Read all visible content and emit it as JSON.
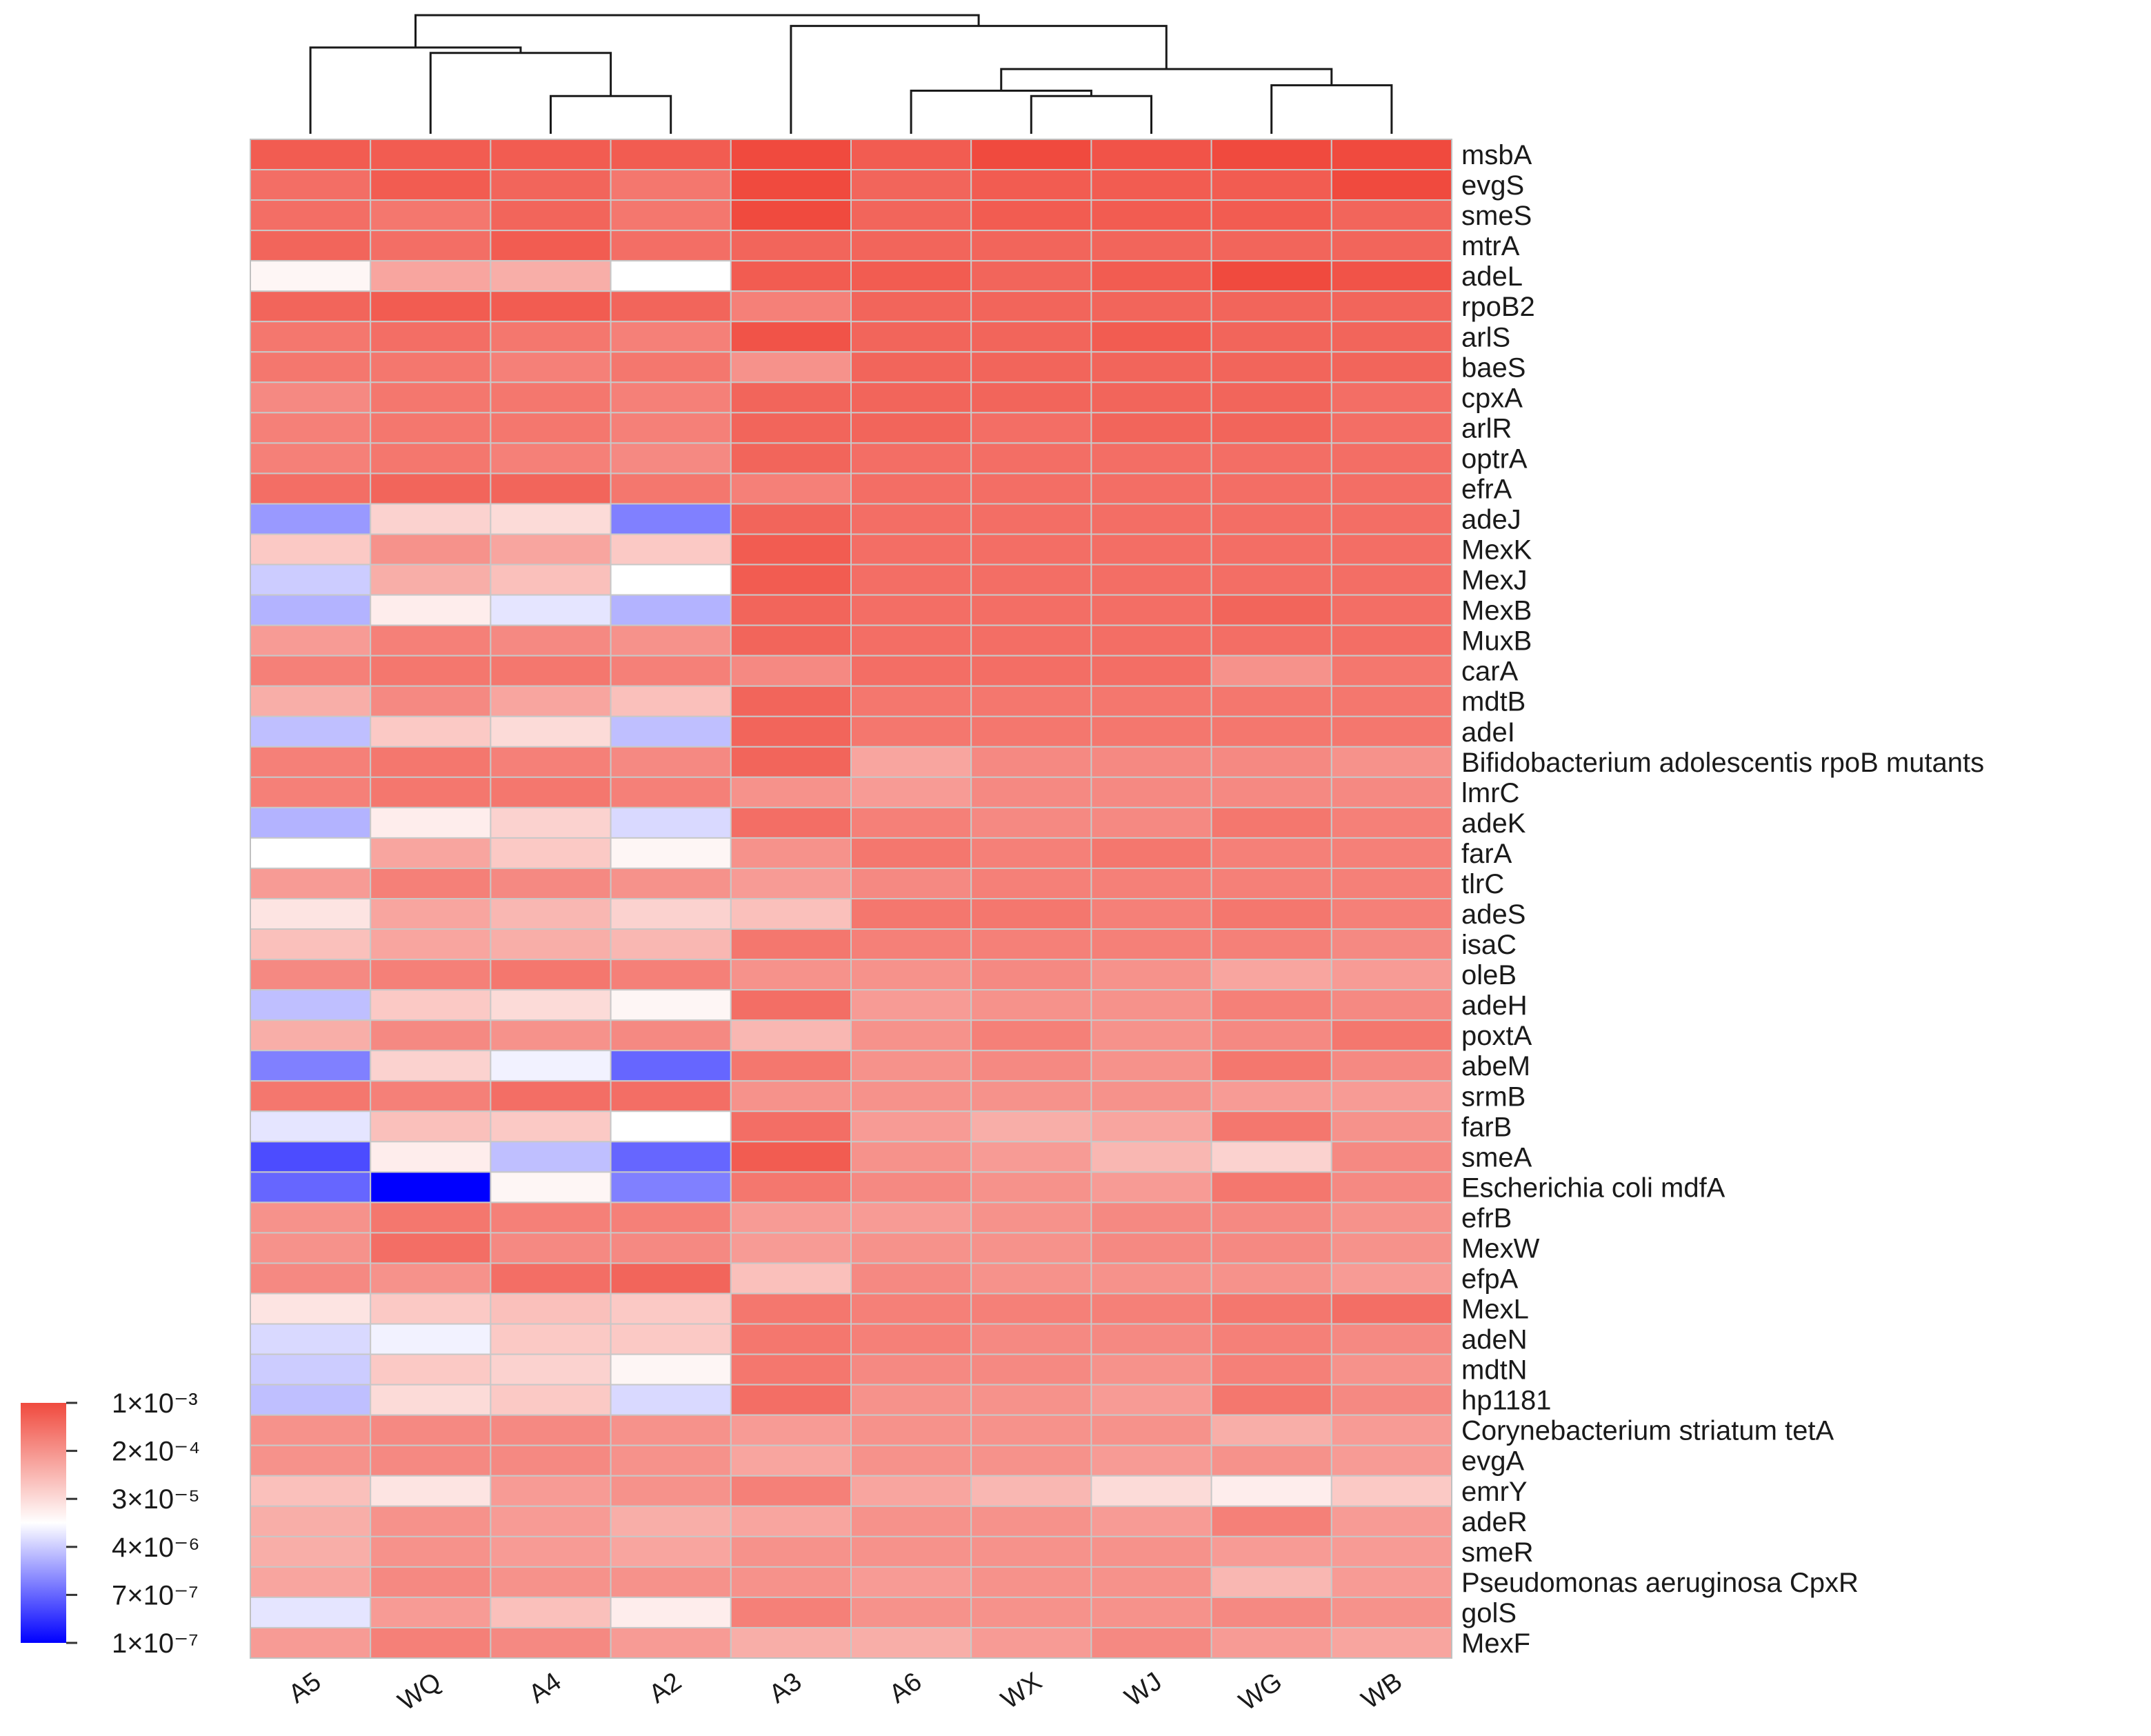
{
  "chart_data": {
    "type": "heatmap",
    "columns": [
      "A5",
      "WQ",
      "A4",
      "A2",
      "A3",
      "A6",
      "WX",
      "WJ",
      "WG",
      "WB"
    ],
    "rows": [
      "msbA",
      "evgS",
      "smeS",
      "mtrA",
      "adeL",
      "rpoB2",
      "arlS",
      "baeS",
      "cpxA",
      "arlR",
      "optrA",
      "efrA",
      "adeJ",
      "MexK",
      "MexJ",
      "MexB",
      "MuxB",
      "carA",
      "mdtB",
      "adeI",
      "Bifidobacterium adolescentis rpoB mutants",
      "lmrC",
      "adeK",
      "farA",
      "tlrC",
      "adeS",
      "isaC",
      "oleB",
      "adeH",
      "poxtA",
      "abeM",
      "srmB",
      "farB",
      "smeA",
      "Escherichia coli mdfA",
      "efrB",
      "MexW",
      "efpA",
      "MexL",
      "adeN",
      "mdtN",
      "hp1181",
      "Corynebacterium striatum tetA",
      "evgA",
      "emrY",
      "adeR",
      "smeR",
      "Pseudomonas aeruginosa CpxR",
      "golS",
      "MexF"
    ],
    "values": [
      [
        -3.2,
        -3.2,
        -3.2,
        -3.2,
        -3.0,
        -3.2,
        -3.0,
        -3.1,
        -3.0,
        -3.0
      ],
      [
        -3.4,
        -3.2,
        -3.3,
        -3.5,
        -2.9,
        -3.3,
        -3.2,
        -3.2,
        -3.2,
        -3.0
      ],
      [
        -3.4,
        -3.5,
        -3.3,
        -3.5,
        -3.0,
        -3.3,
        -3.2,
        -3.2,
        -3.2,
        -3.3
      ],
      [
        -3.3,
        -3.4,
        -3.2,
        -3.4,
        -3.3,
        -3.3,
        -3.3,
        -3.3,
        -3.3,
        -3.3
      ],
      [
        -4.9,
        -4.0,
        -4.1,
        -5.0,
        -3.2,
        -3.2,
        -3.3,
        -3.2,
        -3.0,
        -3.1
      ],
      [
        -3.3,
        -3.2,
        -3.2,
        -3.3,
        -3.6,
        -3.3,
        -3.3,
        -3.3,
        -3.3,
        -3.3
      ],
      [
        -3.5,
        -3.4,
        -3.5,
        -3.6,
        -3.1,
        -3.3,
        -3.3,
        -3.2,
        -3.3,
        -3.3
      ],
      [
        -3.5,
        -3.5,
        -3.6,
        -3.5,
        -3.8,
        -3.3,
        -3.3,
        -3.3,
        -3.3,
        -3.3
      ],
      [
        -3.7,
        -3.5,
        -3.5,
        -3.6,
        -3.3,
        -3.3,
        -3.3,
        -3.3,
        -3.3,
        -3.4
      ],
      [
        -3.6,
        -3.5,
        -3.5,
        -3.6,
        -3.3,
        -3.3,
        -3.4,
        -3.3,
        -3.3,
        -3.4
      ],
      [
        -3.6,
        -3.5,
        -3.6,
        -3.7,
        -3.3,
        -3.4,
        -3.4,
        -3.4,
        -3.4,
        -3.4
      ],
      [
        -3.4,
        -3.3,
        -3.3,
        -3.5,
        -3.6,
        -3.4,
        -3.4,
        -3.4,
        -3.4,
        -3.4
      ],
      [
        -5.8,
        -4.5,
        -4.6,
        -6.0,
        -3.3,
        -3.4,
        -3.4,
        -3.4,
        -3.4,
        -3.4
      ],
      [
        -4.4,
        -3.8,
        -4.0,
        -4.4,
        -3.2,
        -3.4,
        -3.4,
        -3.4,
        -3.4,
        -3.4
      ],
      [
        -5.4,
        -4.1,
        -4.3,
        -5.0,
        -3.2,
        -3.4,
        -3.4,
        -3.4,
        -3.4,
        -3.4
      ],
      [
        -5.6,
        -4.8,
        -5.2,
        -5.6,
        -3.3,
        -3.4,
        -3.4,
        -3.4,
        -3.3,
        -3.4
      ],
      [
        -3.9,
        -3.6,
        -3.7,
        -3.8,
        -3.3,
        -3.4,
        -3.4,
        -3.4,
        -3.4,
        -3.4
      ],
      [
        -3.6,
        -3.5,
        -3.5,
        -3.6,
        -3.7,
        -3.4,
        -3.4,
        -3.4,
        -3.8,
        -3.5
      ],
      [
        -4.1,
        -3.7,
        -4.0,
        -4.3,
        -3.3,
        -3.5,
        -3.5,
        -3.5,
        -3.5,
        -3.5
      ],
      [
        -5.5,
        -4.4,
        -4.6,
        -5.5,
        -3.3,
        -3.5,
        -3.5,
        -3.5,
        -3.5,
        -3.5
      ],
      [
        -3.6,
        -3.5,
        -3.6,
        -3.7,
        -3.3,
        -4.0,
        -3.7,
        -3.7,
        -3.7,
        -3.8
      ],
      [
        -3.6,
        -3.5,
        -3.5,
        -3.6,
        -3.8,
        -3.9,
        -3.7,
        -3.7,
        -3.7,
        -3.7
      ],
      [
        -5.6,
        -4.8,
        -4.5,
        -5.3,
        -3.4,
        -3.6,
        -3.7,
        -3.7,
        -3.5,
        -3.6
      ],
      [
        -5.0,
        -4.0,
        -4.4,
        -4.9,
        -3.8,
        -3.5,
        -3.6,
        -3.5,
        -3.6,
        -3.6
      ],
      [
        -3.9,
        -3.6,
        -3.7,
        -3.8,
        -3.9,
        -3.7,
        -3.6,
        -3.6,
        -3.6,
        -3.6
      ],
      [
        -4.7,
        -4.0,
        -4.2,
        -4.5,
        -4.3,
        -3.5,
        -3.5,
        -3.6,
        -3.5,
        -3.6
      ],
      [
        -4.3,
        -4.0,
        -4.1,
        -4.2,
        -3.5,
        -3.6,
        -3.6,
        -3.6,
        -3.6,
        -3.7
      ],
      [
        -3.7,
        -3.6,
        -3.5,
        -3.6,
        -3.8,
        -3.8,
        -3.7,
        -3.8,
        -4.0,
        -3.9
      ],
      [
        -5.5,
        -4.4,
        -4.6,
        -4.9,
        -3.4,
        -3.9,
        -3.8,
        -3.8,
        -3.6,
        -3.7
      ],
      [
        -4.1,
        -3.7,
        -3.8,
        -3.7,
        -4.2,
        -3.8,
        -3.6,
        -3.8,
        -3.7,
        -3.5
      ],
      [
        -6.0,
        -4.5,
        -5.1,
        -6.2,
        -3.5,
        -3.8,
        -3.7,
        -3.8,
        -3.5,
        -3.7
      ],
      [
        -3.5,
        -3.6,
        -3.4,
        -3.4,
        -3.8,
        -3.8,
        -3.8,
        -3.8,
        -3.9,
        -3.9
      ],
      [
        -5.2,
        -4.3,
        -4.4,
        -5.0,
        -3.4,
        -3.9,
        -4.1,
        -4.0,
        -3.5,
        -3.8
      ],
      [
        -6.4,
        -4.8,
        -5.5,
        -6.2,
        -3.2,
        -3.8,
        -3.9,
        -4.2,
        -4.5,
        -3.7
      ],
      [
        -6.2,
        -7.0,
        -4.9,
        -6.0,
        -3.5,
        -3.7,
        -3.8,
        -3.9,
        -3.5,
        -3.7
      ],
      [
        -3.8,
        -3.5,
        -3.6,
        -3.6,
        -3.9,
        -3.9,
        -3.8,
        -3.7,
        -3.7,
        -3.8
      ],
      [
        -3.8,
        -3.4,
        -3.7,
        -3.7,
        -3.9,
        -3.8,
        -3.8,
        -3.7,
        -3.7,
        -3.8
      ],
      [
        -3.7,
        -3.8,
        -3.4,
        -3.3,
        -4.3,
        -3.7,
        -3.8,
        -3.8,
        -3.8,
        -3.9
      ],
      [
        -4.7,
        -4.4,
        -4.3,
        -4.4,
        -3.5,
        -3.6,
        -3.6,
        -3.6,
        -3.5,
        -3.4
      ],
      [
        -5.3,
        -5.1,
        -4.4,
        -4.4,
        -3.5,
        -3.6,
        -3.7,
        -3.7,
        -3.6,
        -3.7
      ],
      [
        -5.4,
        -4.4,
        -4.5,
        -4.9,
        -3.5,
        -3.7,
        -3.7,
        -3.8,
        -3.6,
        -3.8
      ],
      [
        -5.5,
        -4.6,
        -4.4,
        -5.3,
        -3.4,
        -3.8,
        -3.8,
        -3.9,
        -3.5,
        -3.7
      ],
      [
        -3.8,
        -3.7,
        -3.7,
        -3.8,
        -3.9,
        -3.8,
        -3.8,
        -3.8,
        -4.1,
        -3.9
      ],
      [
        -3.8,
        -3.7,
        -3.7,
        -3.8,
        -4.0,
        -3.8,
        -3.8,
        -3.9,
        -3.8,
        -3.9
      ],
      [
        -4.3,
        -4.7,
        -3.9,
        -3.8,
        -3.6,
        -4.0,
        -4.2,
        -4.6,
        -4.8,
        -4.4
      ],
      [
        -4.1,
        -3.8,
        -3.9,
        -4.1,
        -4.0,
        -3.8,
        -3.8,
        -3.9,
        -3.6,
        -3.9
      ],
      [
        -4.1,
        -3.8,
        -3.9,
        -4.0,
        -3.8,
        -3.8,
        -3.8,
        -3.8,
        -3.9,
        -3.9
      ],
      [
        -4.0,
        -3.7,
        -3.8,
        -3.8,
        -3.8,
        -3.9,
        -3.8,
        -3.8,
        -4.2,
        -3.9
      ],
      [
        -5.2,
        -3.9,
        -4.3,
        -4.8,
        -3.6,
        -3.8,
        -3.8,
        -3.8,
        -3.7,
        -3.8
      ],
      [
        -3.9,
        -3.6,
        -3.7,
        -3.9,
        -4.1,
        -4.1,
        -3.9,
        -3.7,
        -3.9,
        -4.0
      ]
    ],
    "value_note": "log10 relative abundance",
    "color_scale": {
      "min": -7.0,
      "max": -3.0,
      "low_color": "#0000ff",
      "mid_color": "#ffffff",
      "high_color": "#f04a3e"
    },
    "legend": {
      "position": "bottom-left",
      "ticks": [
        "1×10⁻³",
        "2×10⁻⁴",
        "3×10⁻⁵",
        "4×10⁻⁶",
        "7×10⁻⁷",
        "1×10⁻⁷"
      ]
    },
    "column_dendrogram": {
      "merges": [
        [
          2,
          3,
          0.35
        ],
        [
          1,
          10,
          0.75
        ],
        [
          0,
          11,
          0.8
        ],
        [
          6,
          7,
          0.35
        ],
        [
          5,
          13,
          0.4
        ],
        [
          8,
          9,
          0.45
        ],
        [
          14,
          15,
          0.6
        ],
        [
          4,
          16,
          1.0
        ],
        [
          12,
          17,
          1.1
        ]
      ],
      "max_height": 1.1
    },
    "title": "",
    "xlabel": "",
    "ylabel": ""
  }
}
